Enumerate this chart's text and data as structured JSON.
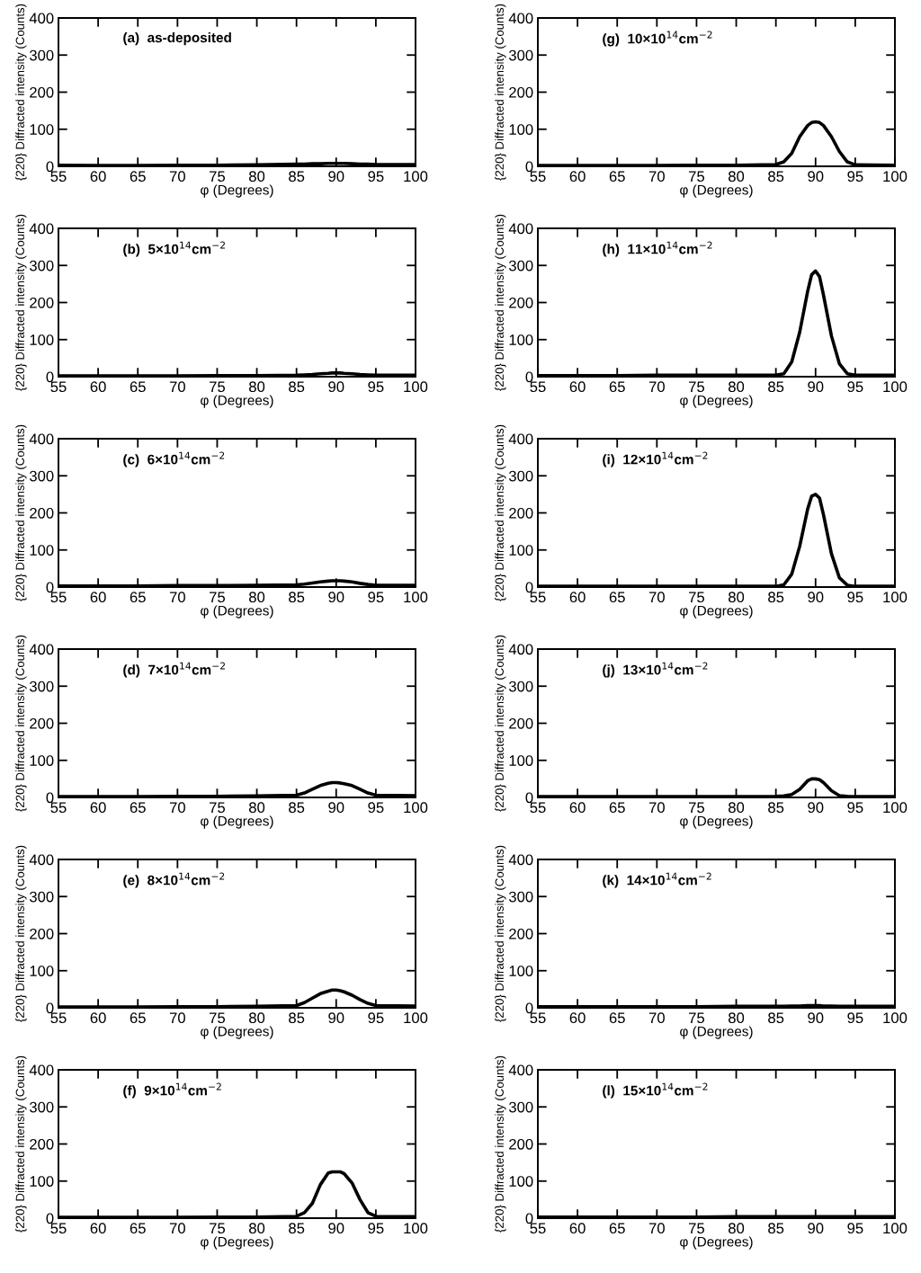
{
  "chart_data": [
    {
      "type": "line",
      "title": "(a)  as-deposited",
      "xlabel": "φ (Degrees)",
      "ylabel": "{220} Diffracted intensity (Counts)",
      "x": [
        55,
        60,
        65,
        70,
        75,
        80,
        85,
        86,
        87,
        88,
        89,
        89.5,
        90,
        90.5,
        91,
        92,
        93,
        94,
        95,
        100
      ],
      "series": [
        {
          "color": "#000000",
          "values": [
            3,
            2,
            2,
            3,
            3,
            4,
            6,
            6,
            7,
            7,
            8,
            8,
            8,
            8,
            8,
            7,
            6,
            6,
            5,
            5
          ]
        }
      ],
      "xlim": [
        55,
        100
      ],
      "ylim": [
        0,
        400
      ],
      "xticks": [
        55,
        60,
        65,
        70,
        75,
        80,
        85,
        90,
        95,
        100
      ],
      "yticks": [
        0,
        100,
        200,
        300,
        400
      ],
      "grid": false,
      "marker": "none",
      "line_style": "solid"
    },
    {
      "type": "line",
      "title": "(b)  5×10$^{14}$cm$^{−2}$",
      "xlabel": "φ (Degrees)",
      "ylabel": "{220} Diffracted intensity (Counts)",
      "x": [
        55,
        60,
        65,
        70,
        75,
        80,
        85,
        86,
        87,
        88,
        89,
        89.5,
        90,
        90.5,
        91,
        92,
        93,
        94,
        95,
        100
      ],
      "series": [
        {
          "color": "#000000",
          "values": [
            2,
            2,
            2,
            2,
            3,
            3,
            4,
            5,
            6,
            8,
            9,
            10,
            10,
            10,
            9,
            8,
            6,
            5,
            4,
            4
          ]
        }
      ],
      "xlim": [
        55,
        100
      ],
      "ylim": [
        0,
        400
      ],
      "xticks": [
        55,
        60,
        65,
        70,
        75,
        80,
        85,
        90,
        95,
        100
      ],
      "yticks": [
        0,
        100,
        200,
        300,
        400
      ],
      "grid": false,
      "marker": "none",
      "line_style": "solid"
    },
    {
      "type": "line",
      "title": "(c)  6×10$^{14}$cm$^{−2}$",
      "xlabel": "φ (Degrees)",
      "ylabel": "{220} Diffracted intensity (Counts)",
      "x": [
        55,
        60,
        65,
        70,
        75,
        80,
        85,
        86,
        87,
        88,
        89,
        89.5,
        90,
        90.5,
        91,
        92,
        93,
        94,
        95,
        100
      ],
      "series": [
        {
          "color": "#000000",
          "values": [
            3,
            3,
            3,
            4,
            4,
            5,
            6,
            8,
            11,
            14,
            16,
            17,
            17,
            17,
            16,
            14,
            10,
            7,
            5,
            5
          ]
        }
      ],
      "xlim": [
        55,
        100
      ],
      "ylim": [
        0,
        400
      ],
      "xticks": [
        55,
        60,
        65,
        70,
        75,
        80,
        85,
        90,
        95,
        100
      ],
      "yticks": [
        0,
        100,
        200,
        300,
        400
      ],
      "grid": false,
      "marker": "none",
      "line_style": "solid"
    },
    {
      "type": "line",
      "title": "(d)  7×10$^{14}$cm$^{−2}$",
      "xlabel": "φ (Degrees)",
      "ylabel": "{220} Diffracted intensity (Counts)",
      "x": [
        55,
        60,
        65,
        70,
        75,
        80,
        85,
        86,
        87,
        88,
        89,
        89.5,
        90,
        90.5,
        91,
        92,
        93,
        94,
        95,
        100
      ],
      "series": [
        {
          "color": "#000000",
          "values": [
            2,
            2,
            2,
            3,
            3,
            4,
            6,
            12,
            22,
            32,
            38,
            40,
            40,
            39,
            37,
            32,
            22,
            12,
            6,
            5
          ]
        }
      ],
      "xlim": [
        55,
        100
      ],
      "ylim": [
        0,
        400
      ],
      "xticks": [
        55,
        60,
        65,
        70,
        75,
        80,
        85,
        90,
        95,
        100
      ],
      "yticks": [
        0,
        100,
        200,
        300,
        400
      ],
      "grid": false,
      "marker": "none",
      "line_style": "solid"
    },
    {
      "type": "line",
      "title": "(e)  8×10$^{14}$cm$^{−2}$",
      "xlabel": "φ (Degrees)",
      "ylabel": "{220} Diffracted intensity (Counts)",
      "x": [
        55,
        60,
        65,
        70,
        75,
        80,
        85,
        86,
        87,
        88,
        89,
        89.5,
        90,
        90.5,
        91,
        92,
        93,
        94,
        95,
        100
      ],
      "series": [
        {
          "color": "#000000",
          "values": [
            2,
            2,
            2,
            3,
            3,
            4,
            6,
            14,
            26,
            38,
            45,
            48,
            48,
            46,
            43,
            34,
            22,
            12,
            6,
            5
          ]
        }
      ],
      "xlim": [
        55,
        100
      ],
      "ylim": [
        0,
        400
      ],
      "xticks": [
        55,
        60,
        65,
        70,
        75,
        80,
        85,
        90,
        95,
        100
      ],
      "yticks": [
        0,
        100,
        200,
        300,
        400
      ],
      "grid": false,
      "marker": "none",
      "line_style": "solid"
    },
    {
      "type": "line",
      "title": "(f)  9×10$^{14}$cm$^{−2}$",
      "xlabel": "φ (Degrees)",
      "ylabel": "{220} Diffracted intensity (Counts)",
      "x": [
        55,
        60,
        65,
        70,
        75,
        80,
        85,
        86,
        87,
        88,
        89,
        89.5,
        90,
        90.5,
        91,
        92,
        93,
        94,
        95,
        100
      ],
      "series": [
        {
          "color": "#000000",
          "values": [
            2,
            2,
            2,
            2,
            3,
            3,
            5,
            15,
            40,
            90,
            122,
            125,
            125,
            125,
            120,
            95,
            50,
            15,
            5,
            4
          ]
        }
      ],
      "xlim": [
        55,
        100
      ],
      "ylim": [
        0,
        400
      ],
      "xticks": [
        55,
        60,
        65,
        70,
        75,
        80,
        85,
        90,
        95,
        100
      ],
      "yticks": [
        0,
        100,
        200,
        300,
        400
      ],
      "grid": false,
      "marker": "none",
      "line_style": "solid"
    },
    {
      "type": "line",
      "title": "(g)  10×10$^{14}$cm$^{−2}$",
      "xlabel": "φ (Degrees)",
      "ylabel": "{220} Diffracted intensity (Counts)",
      "x": [
        55,
        60,
        65,
        70,
        75,
        80,
        85,
        86,
        87,
        88,
        89,
        89.5,
        90,
        90.5,
        91,
        92,
        93,
        94,
        95,
        100
      ],
      "series": [
        {
          "color": "#000000",
          "values": [
            2,
            2,
            2,
            2,
            3,
            3,
            5,
            12,
            35,
            80,
            110,
            118,
            120,
            118,
            110,
            80,
            40,
            12,
            4,
            3
          ]
        }
      ],
      "xlim": [
        55,
        100
      ],
      "ylim": [
        0,
        400
      ],
      "xticks": [
        55,
        60,
        65,
        70,
        75,
        80,
        85,
        90,
        95,
        100
      ],
      "yticks": [
        0,
        100,
        200,
        300,
        400
      ],
      "grid": false,
      "marker": "none",
      "line_style": "solid"
    },
    {
      "type": "line",
      "title": "(h)  11×10$^{14}$cm$^{−2}$",
      "xlabel": "φ (Degrees)",
      "ylabel": "{220} Diffracted intensity (Counts)",
      "x": [
        55,
        60,
        65,
        70,
        75,
        80,
        85,
        86,
        87,
        88,
        89,
        89.5,
        90,
        90.5,
        91,
        92,
        93,
        94,
        95,
        100
      ],
      "series": [
        {
          "color": "#000000",
          "values": [
            3,
            3,
            3,
            4,
            4,
            4,
            4,
            8,
            40,
            120,
            230,
            275,
            285,
            270,
            220,
            110,
            35,
            8,
            4,
            4
          ]
        }
      ],
      "xlim": [
        55,
        100
      ],
      "ylim": [
        0,
        400
      ],
      "xticks": [
        55,
        60,
        65,
        70,
        75,
        80,
        85,
        90,
        95,
        100
      ],
      "yticks": [
        0,
        100,
        200,
        300,
        400
      ],
      "grid": false,
      "marker": "none",
      "line_style": "solid"
    },
    {
      "type": "line",
      "title": "(i)  12×10$^{14}$cm$^{−2}$",
      "xlabel": "φ (Degrees)",
      "ylabel": "{220} Diffracted intensity (Counts)",
      "x": [
        55,
        60,
        65,
        70,
        75,
        80,
        85,
        86,
        87,
        88,
        89,
        89.5,
        90,
        90.5,
        91,
        92,
        93,
        94,
        95,
        100
      ],
      "series": [
        {
          "color": "#000000",
          "values": [
            2,
            2,
            2,
            2,
            2,
            2,
            2,
            6,
            35,
            110,
            210,
            245,
            250,
            240,
            195,
            90,
            25,
            5,
            2,
            2
          ]
        }
      ],
      "xlim": [
        55,
        100
      ],
      "ylim": [
        0,
        400
      ],
      "xticks": [
        55,
        60,
        65,
        70,
        75,
        80,
        85,
        90,
        95,
        100
      ],
      "yticks": [
        0,
        100,
        200,
        300,
        400
      ],
      "grid": false,
      "marker": "none",
      "line_style": "solid"
    },
    {
      "type": "line",
      "title": "(j)  13×10$^{14}$cm$^{−2}$",
      "xlabel": "φ (Degrees)",
      "ylabel": "{220} Diffracted intensity (Counts)",
      "x": [
        55,
        60,
        65,
        70,
        75,
        80,
        85,
        86,
        87,
        88,
        89,
        89.5,
        90,
        90.5,
        91,
        92,
        93,
        94,
        95,
        100
      ],
      "series": [
        {
          "color": "#000000",
          "values": [
            2,
            2,
            2,
            2,
            2,
            2,
            3,
            4,
            8,
            22,
            45,
            50,
            50,
            48,
            40,
            18,
            5,
            3,
            2,
            2
          ]
        }
      ],
      "xlim": [
        55,
        100
      ],
      "ylim": [
        0,
        400
      ],
      "xticks": [
        55,
        60,
        65,
        70,
        75,
        80,
        85,
        90,
        95,
        100
      ],
      "yticks": [
        0,
        100,
        200,
        300,
        400
      ],
      "grid": false,
      "marker": "none",
      "line_style": "solid"
    },
    {
      "type": "line",
      "title": "(k)  14×10$^{14}$cm$^{−2}$",
      "xlabel": "φ (Degrees)",
      "ylabel": "{220} Diffracted intensity (Counts)",
      "x": [
        55,
        60,
        65,
        70,
        75,
        80,
        85,
        86,
        87,
        88,
        89,
        89.5,
        90,
        90.5,
        91,
        92,
        93,
        94,
        95,
        100
      ],
      "series": [
        {
          "color": "#000000",
          "values": [
            3,
            3,
            3,
            3,
            3,
            4,
            4,
            4,
            5,
            5,
            6,
            6,
            6,
            6,
            5,
            5,
            4,
            4,
            4,
            4
          ]
        }
      ],
      "xlim": [
        55,
        100
      ],
      "ylim": [
        0,
        400
      ],
      "xticks": [
        55,
        60,
        65,
        70,
        75,
        80,
        85,
        90,
        95,
        100
      ],
      "yticks": [
        0,
        100,
        200,
        300,
        400
      ],
      "grid": false,
      "marker": "none",
      "line_style": "solid"
    },
    {
      "type": "line",
      "title": "(l)  15×10$^{14}$cm$^{−2}$",
      "xlabel": "φ (Degrees)",
      "ylabel": "{220} Diffracted intensity (Counts)",
      "x": [
        55,
        60,
        65,
        70,
        75,
        80,
        85,
        86,
        87,
        88,
        89,
        89.5,
        90,
        90.5,
        91,
        92,
        93,
        94,
        95,
        100
      ],
      "series": [
        {
          "color": "#000000",
          "values": [
            3,
            3,
            3,
            3,
            3,
            4,
            4,
            4,
            4,
            4,
            4,
            4,
            4,
            4,
            4,
            4,
            4,
            4,
            4,
            4
          ]
        }
      ],
      "xlim": [
        55,
        100
      ],
      "ylim": [
        0,
        400
      ],
      "xticks": [
        55,
        60,
        65,
        70,
        75,
        80,
        85,
        90,
        95,
        100
      ],
      "yticks": [
        0,
        100,
        200,
        300,
        400
      ],
      "grid": false,
      "marker": "none",
      "line_style": "solid"
    }
  ]
}
